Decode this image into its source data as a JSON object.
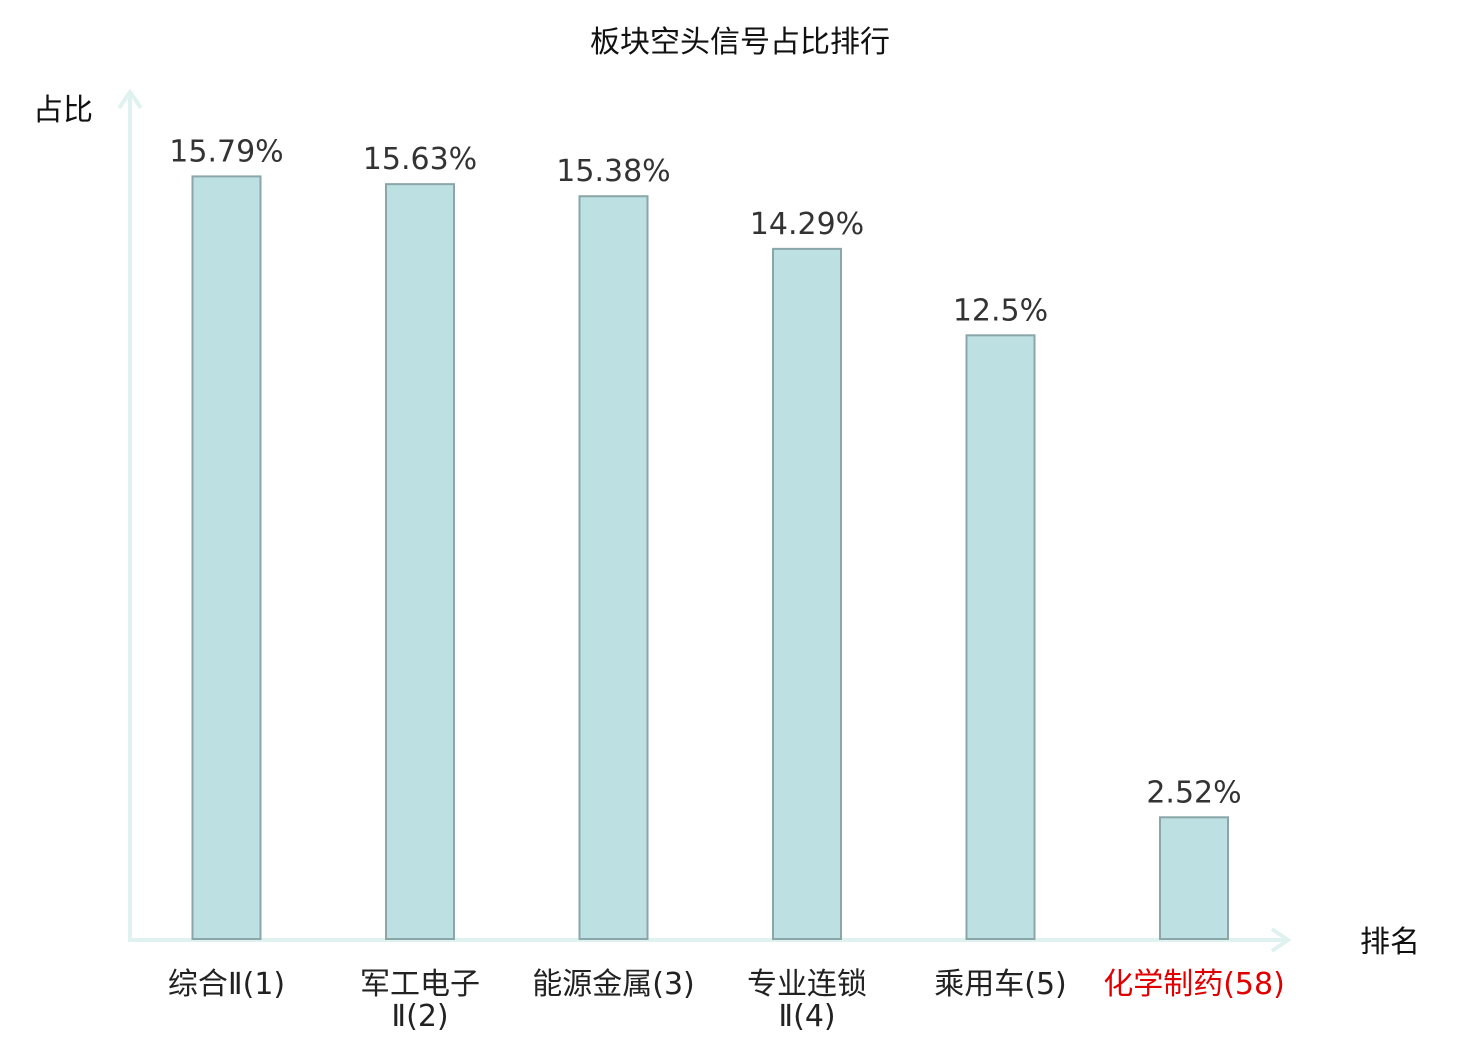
{
  "chart_data": {
    "type": "bar",
    "title": "板块空头信号占比排行",
    "ylabel": "占比",
    "xlabel": "排名",
    "ylim": [
      0,
      17.6
    ],
    "grid": false,
    "categories": [
      [
        "综合Ⅱ(1)"
      ],
      [
        "军工电子",
        "Ⅱ(2)"
      ],
      [
        "能源金属(3)"
      ],
      [
        "专业连锁",
        "Ⅱ(4)"
      ],
      [
        "乘用车(5)"
      ],
      [
        "化学制药(58)"
      ]
    ],
    "values": [
      15.79,
      15.63,
      15.38,
      14.29,
      12.5,
      2.52
    ],
    "value_labels": [
      "15.79%",
      "15.63%",
      "15.38%",
      "14.29%",
      "12.5%",
      "2.52%"
    ],
    "highlight_index": 5,
    "colors": {
      "bar_fill": "#bde0e3",
      "bar_stroke": "#8aa6a8",
      "axis": "#e0f2ef",
      "highlight_text": "#e00000"
    }
  }
}
